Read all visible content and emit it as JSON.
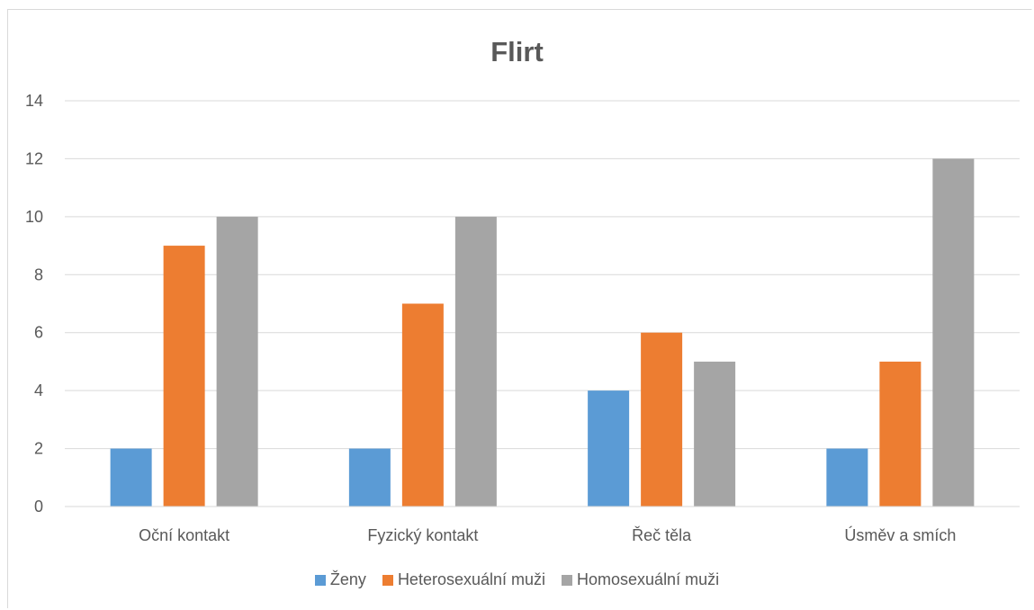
{
  "chart_data": {
    "type": "bar",
    "title": "Flirt",
    "categories": [
      "Oční kontakt",
      "Fyzický kontakt",
      "Řeč těla",
      "Úsměv a smích"
    ],
    "series": [
      {
        "name": "Ženy",
        "values": [
          2,
          2,
          4,
          2
        ],
        "color": "#5b9bd5"
      },
      {
        "name": "Heterosexuální muži",
        "values": [
          9,
          7,
          6,
          5
        ],
        "color": "#ed7d31"
      },
      {
        "name": "Homosexuální muži",
        "values": [
          10,
          10,
          5,
          12
        ],
        "color": "#a5a5a5"
      }
    ],
    "ylim": [
      0,
      14
    ],
    "yticks": [
      0,
      2,
      4,
      6,
      8,
      10,
      12,
      14
    ],
    "grid": true,
    "legend": "bottom",
    "xlabel": "",
    "ylabel": ""
  }
}
